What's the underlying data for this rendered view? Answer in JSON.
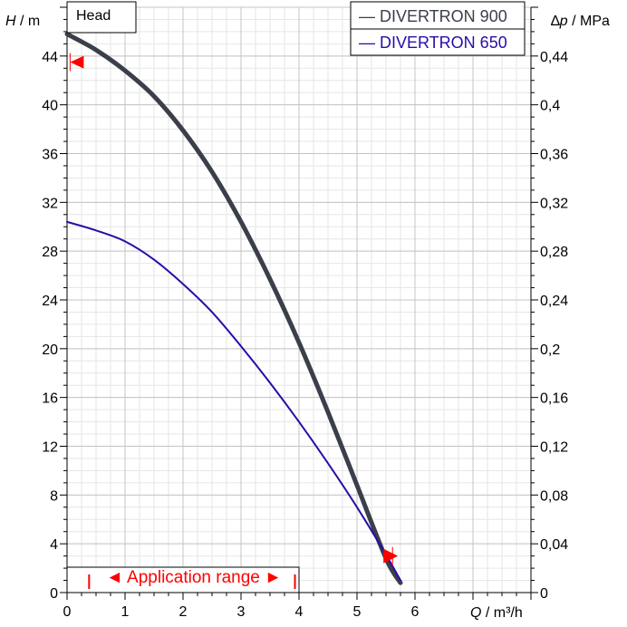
{
  "chart_data": {
    "type": "line",
    "title": "Head",
    "xlabel": {
      "var": "Q",
      "unit": " / m³/h"
    },
    "ylabel_left": {
      "var": "H",
      "unit": " / m"
    },
    "ylabel_right": {
      "var": "p",
      "prefix": "∆",
      "unit": " / MPa"
    },
    "xlim": [
      0,
      8
    ],
    "ylim": [
      0,
      48
    ],
    "y2lim": [
      0,
      0.48
    ],
    "x_ticks": [
      "0",
      "1",
      "2",
      "3",
      "4",
      "5",
      "6"
    ],
    "y_ticks": [
      "0",
      "4",
      "8",
      "12",
      "16",
      "20",
      "24",
      "28",
      "32",
      "36",
      "40",
      "44"
    ],
    "y2_ticks": [
      "0",
      "0,04",
      "0,08",
      "0,12",
      "0,16",
      "0,2",
      "0,24",
      "0,28",
      "0,32",
      "0,36",
      "0,4",
      "0,44"
    ],
    "grid": true,
    "legend_position": "top-right",
    "series": [
      {
        "name": "DIVERTRON 900",
        "color": "#3a3f4a",
        "x": [
          0,
          0.5,
          1,
          1.5,
          2,
          2.5,
          3,
          3.5,
          4,
          4.5,
          5,
          5.5,
          5.75
        ],
        "y": [
          45.8,
          44.5,
          42.8,
          40.7,
          37.9,
          34.5,
          30.4,
          25.7,
          20.5,
          14.8,
          8.8,
          2.8,
          0.8
        ]
      },
      {
        "name": "DIVERTRON 650",
        "color": "#2a0ca8",
        "x": [
          0,
          0.5,
          1,
          1.5,
          2,
          2.5,
          3,
          3.5,
          4,
          4.5,
          5,
          5.5,
          5.75
        ],
        "y": [
          30.4,
          29.7,
          28.8,
          27.3,
          25.3,
          23.0,
          20.2,
          17.2,
          14.0,
          10.6,
          7.0,
          3.1,
          1.0
        ]
      }
    ],
    "application_range": {
      "label": "◄ Application range ►",
      "x_start": 0.38,
      "x_end": 3.93
    },
    "markers": [
      {
        "series": "DIVERTRON 900",
        "x": 0.1,
        "y": 43.5,
        "direction": "left",
        "color": "#ff0000"
      },
      {
        "series": "DIVERTRON 900",
        "x": 5.55,
        "y": 3.0,
        "direction": "right",
        "color": "#ff0000"
      }
    ]
  }
}
